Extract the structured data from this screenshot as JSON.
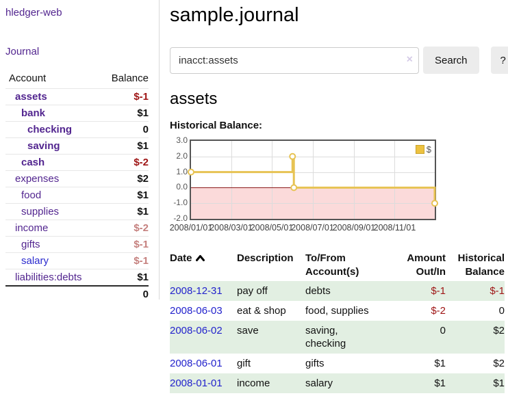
{
  "app": {
    "title": "hledger-web"
  },
  "sidebar": {
    "nav_journal": "Journal",
    "accounts_table": {
      "header_account": "Account",
      "header_balance": "Balance",
      "rows": [
        {
          "name": "assets",
          "depth": 1,
          "bold": true,
          "balance": "$-1",
          "balance_style": "neg"
        },
        {
          "name": "bank",
          "depth": 2,
          "bold": true,
          "balance": "$1",
          "balance_style": "pos"
        },
        {
          "name": "checking",
          "depth": 3,
          "bold": true,
          "balance": "0",
          "balance_style": "pos"
        },
        {
          "name": "saving",
          "depth": 3,
          "bold": true,
          "balance": "$1",
          "balance_style": "pos"
        },
        {
          "name": "cash",
          "depth": 2,
          "bold": true,
          "balance": "$-2",
          "balance_style": "neg"
        },
        {
          "name": "expenses",
          "depth": 1,
          "bold": false,
          "balance": "$2",
          "balance_style": "pos"
        },
        {
          "name": "food",
          "depth": 2,
          "bold": false,
          "balance": "$1",
          "balance_style": "pos"
        },
        {
          "name": "supplies",
          "depth": 2,
          "bold": false,
          "balance": "$1",
          "balance_style": "pos"
        },
        {
          "name": "income",
          "depth": 1,
          "bold": false,
          "balance": "$-2",
          "balance_style": "neg-muted"
        },
        {
          "name": "gifts",
          "depth": 2,
          "bold": false,
          "balance": "$-1",
          "balance_style": "neg-muted"
        },
        {
          "name": "salary",
          "depth": 2,
          "bold": false,
          "link_style": "visited",
          "balance": "$-1",
          "balance_style": "neg-muted"
        },
        {
          "name": "liabilities:debts",
          "depth": 1,
          "bold": false,
          "balance": "$1",
          "balance_style": "pos"
        }
      ],
      "total": "0"
    }
  },
  "header": {
    "title": "sample.journal"
  },
  "search": {
    "value": "inacct:assets",
    "clear_icon": "×",
    "button_label": "Search",
    "help_label": "?"
  },
  "account_page": {
    "heading": "assets",
    "chart_label": "Historical Balance:"
  },
  "chart_data": {
    "type": "line",
    "step": true,
    "title": "Historical Balance:",
    "legend_position": "top-right",
    "grid": true,
    "x_range": [
      "2008-01-01",
      "2008-12-31"
    ],
    "ylim": [
      -2,
      3
    ],
    "y_ticks": [
      "3.0",
      "2.0",
      "1.0",
      "0.0",
      "-1.0",
      "-2.0"
    ],
    "x_ticks": [
      "2008/01/01",
      "2008/03/01",
      "2008/05/01",
      "2008/07/01",
      "2008/09/01",
      "2008/11/01"
    ],
    "series": [
      {
        "name": "$",
        "color": "#e7c353",
        "points": [
          {
            "x": "2008-01-01",
            "y": 1
          },
          {
            "x": "2008-06-01",
            "y": 2
          },
          {
            "x": "2008-06-03",
            "y": 0
          },
          {
            "x": "2008-12-31",
            "y": -1
          }
        ]
      }
    ],
    "negative_region_color": "#fbdada",
    "zero_line_color": "#8b1a1a"
  },
  "transactions": {
    "headers": [
      "Date",
      "Description",
      "To/From Account(s)",
      "Amount Out/In",
      "Historical Balance"
    ],
    "rows": [
      {
        "date": "2008-12-31",
        "description": "pay off",
        "accounts": "debts",
        "amount": "$-1",
        "amount_neg": true,
        "balance": "$-1",
        "balance_neg": true
      },
      {
        "date": "2008-06-03",
        "description": "eat & shop",
        "accounts": "food, supplies",
        "amount": "$-2",
        "amount_neg": true,
        "balance": "0",
        "balance_neg": false
      },
      {
        "date": "2008-06-02",
        "description": "save",
        "accounts": "saving,\nchecking",
        "amount": "0",
        "amount_neg": false,
        "balance": "$2",
        "balance_neg": false
      },
      {
        "date": "2008-06-01",
        "description": "gift",
        "accounts": "gifts",
        "amount": "$1",
        "amount_neg": false,
        "balance": "$2",
        "balance_neg": false
      },
      {
        "date": "2008-01-01",
        "description": "income",
        "accounts": "salary",
        "amount": "$1",
        "amount_neg": false,
        "balance": "$1",
        "balance_neg": false
      }
    ]
  },
  "colors": {
    "accent_purple": "#52258f",
    "visited_blue": "#2a2ace",
    "link_blue": "#2222cc",
    "negative_red": "#9e1414",
    "negative_muted": "#c5807e",
    "chart_gold": "#e7c353",
    "legend_gold": "#edc240",
    "stripe_green": "#e2efe2",
    "negative_region_pink": "#fbdada",
    "zero_line_red": "#8b1a1a"
  }
}
